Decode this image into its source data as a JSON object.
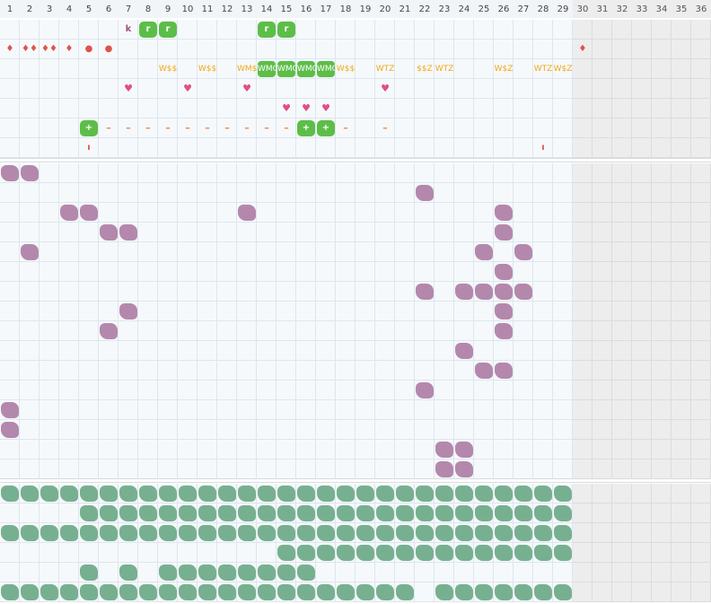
{
  "grid": {
    "columns": [
      "1",
      "2",
      "3",
      "4",
      "5",
      "6",
      "7",
      "8",
      "9",
      "10",
      "11",
      "12",
      "13",
      "14",
      "15",
      "16",
      "17",
      "18",
      "19",
      "20",
      "21",
      "22",
      "23",
      "24",
      "25",
      "26",
      "27",
      "28",
      "29",
      "30",
      "31",
      "32",
      "33",
      "34",
      "35",
      "36"
    ],
    "active_columns": 29
  },
  "top_section": {
    "row1_marks": [
      {
        "col": 7,
        "text": "k",
        "icon": "k-glyph"
      }
    ],
    "row1_badges": [
      {
        "col": 8,
        "text": "r"
      },
      {
        "col": 9,
        "text": "r"
      },
      {
        "col": 14,
        "text": "r"
      },
      {
        "col": 15,
        "text": "r"
      }
    ],
    "row2_drops": [
      {
        "col": 1,
        "text": "♦"
      },
      {
        "col": 2,
        "text": "♦♦"
      },
      {
        "col": 3,
        "text": "♦♦"
      },
      {
        "col": 4,
        "text": "♦"
      },
      {
        "col": 30,
        "text": "♦"
      }
    ],
    "row2_dots": [
      {
        "col": 5,
        "text": "●"
      },
      {
        "col": 6,
        "text": "●"
      }
    ],
    "row3_codes": [
      {
        "col": 9,
        "text": "W$$",
        "on": false
      },
      {
        "col": 11,
        "text": "W$$",
        "on": false
      },
      {
        "col": 13,
        "text": "WM$",
        "on": false
      },
      {
        "col": 14,
        "text": "WMO",
        "on": true
      },
      {
        "col": 15,
        "text": "WMO",
        "on": true
      },
      {
        "col": 16,
        "text": "WMO",
        "on": true
      },
      {
        "col": 17,
        "text": "WMO",
        "on": true
      },
      {
        "col": 18,
        "text": "W$$",
        "on": false
      },
      {
        "col": 20,
        "text": "WTZ",
        "on": false
      },
      {
        "col": 22,
        "text": "$$Z",
        "on": false
      },
      {
        "col": 23,
        "text": "WTZ",
        "on": false
      },
      {
        "col": 26,
        "text": "W$Z",
        "on": false
      },
      {
        "col": 28,
        "text": "WTZ",
        "on": false
      },
      {
        "col": 29,
        "text": "W$Z",
        "on": false
      }
    ],
    "row4_hearts": [
      {
        "col": 7,
        "text": "♥"
      },
      {
        "col": 10,
        "text": "♥"
      },
      {
        "col": 13,
        "text": "♥"
      },
      {
        "col": 20,
        "text": "♥"
      }
    ],
    "row5_hearts": [
      {
        "col": 15,
        "text": "♥"
      },
      {
        "col": 16,
        "text": "♥"
      },
      {
        "col": 17,
        "text": "♥"
      }
    ],
    "row6_badges": [
      {
        "col": 5,
        "text": "+"
      },
      {
        "col": 16,
        "text": "+"
      },
      {
        "col": 17,
        "text": "+"
      }
    ],
    "row6_dashes": [
      {
        "col": 6,
        "text": "–"
      },
      {
        "col": 7,
        "text": "–"
      },
      {
        "col": 8,
        "text": "–"
      },
      {
        "col": 9,
        "text": "–"
      },
      {
        "col": 10,
        "text": "–"
      },
      {
        "col": 11,
        "text": "–"
      },
      {
        "col": 12,
        "text": "–"
      },
      {
        "col": 13,
        "text": "–"
      },
      {
        "col": 14,
        "text": "–"
      },
      {
        "col": 15,
        "text": "–"
      },
      {
        "col": 18,
        "text": "–"
      },
      {
        "col": 20,
        "text": "–"
      }
    ],
    "row8_ticks": [
      {
        "col": 5,
        "text": "ı"
      },
      {
        "col": 28,
        "text": "ı"
      }
    ]
  },
  "middle_section": {
    "cells": [
      [
        0,
        1
      ],
      [
        0,
        2
      ],
      [
        1,
        22
      ],
      [
        2,
        4
      ],
      [
        2,
        5
      ],
      [
        2,
        13
      ],
      [
        2,
        26
      ],
      [
        3,
        6
      ],
      [
        3,
        7
      ],
      [
        3,
        26
      ],
      [
        4,
        2
      ],
      [
        4,
        25
      ],
      [
        4,
        27
      ],
      [
        5,
        26
      ],
      [
        6,
        22
      ],
      [
        6,
        24
      ],
      [
        6,
        25
      ],
      [
        6,
        26
      ],
      [
        6,
        27
      ],
      [
        7,
        7
      ],
      [
        7,
        26
      ],
      [
        8,
        6
      ],
      [
        8,
        26
      ],
      [
        9,
        24
      ],
      [
        10,
        25
      ],
      [
        10,
        26
      ],
      [
        11,
        22
      ],
      [
        12,
        1
      ],
      [
        13,
        1
      ],
      [
        14,
        23
      ],
      [
        14,
        24
      ],
      [
        15,
        23
      ],
      [
        15,
        24
      ]
    ]
  },
  "bottom_section": {
    "rows": [
      {
        "ranges": [
          [
            1,
            29
          ]
        ]
      },
      {
        "ranges": [
          [
            5,
            29
          ]
        ]
      },
      {
        "ranges": [
          [
            1,
            29
          ]
        ]
      },
      {
        "ranges": [
          [
            15,
            29
          ]
        ]
      },
      {
        "ranges": [
          [
            5,
            5
          ],
          [
            7,
            7
          ],
          [
            9,
            16
          ]
        ]
      },
      {
        "ranges": [
          [
            1,
            21
          ],
          [
            23,
            29
          ]
        ]
      }
    ]
  }
}
